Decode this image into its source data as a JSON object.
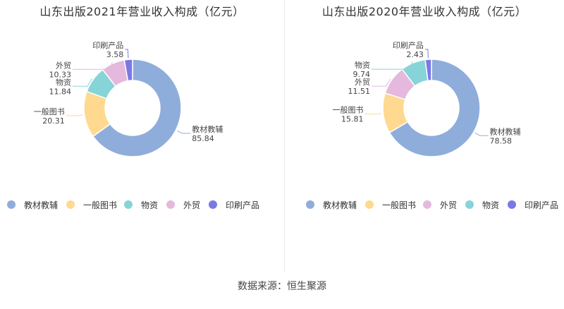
{
  "colors": {
    "教材教辅": "#8faddb",
    "一般图书": "#ffd98f",
    "物资": "#86d4d8",
    "外贸": "#e5b8dd",
    "印刷产品": "#7b78e6"
  },
  "chart_data": [
    {
      "type": "donut",
      "title": "山东出版2021年营业收入构成（亿元）",
      "slices": [
        {
          "name": "教材教辅",
          "value": 85.84,
          "label_value": "85.84"
        },
        {
          "name": "一般图书",
          "value": 20.31,
          "label_value": "20.31"
        },
        {
          "name": "物资",
          "value": 11.84,
          "label_value": "11.84"
        },
        {
          "name": "外贸",
          "value": 10.33,
          "label_value": "10.33"
        },
        {
          "name": "印刷产品",
          "value": 3.58,
          "label_value": "3.58"
        }
      ],
      "legend": [
        "教材教辅",
        "一般图书",
        "物资",
        "外贸",
        "印刷产品"
      ]
    },
    {
      "type": "donut",
      "title": "山东出版2020年营业收入构成（亿元）",
      "slices": [
        {
          "name": "教材教辅",
          "value": 78.58,
          "label_value": "78.58"
        },
        {
          "name": "一般图书",
          "value": 15.81,
          "label_value": "15.81"
        },
        {
          "name": "外贸",
          "value": 11.51,
          "label_value": "11.51"
        },
        {
          "name": "物资",
          "value": 9.74,
          "label_value": "9.74"
        },
        {
          "name": "印刷产品",
          "value": 2.43,
          "label_value": "2.43"
        }
      ],
      "legend": [
        "教材教辅",
        "一般图书",
        "外贸",
        "物资",
        "印刷产品"
      ]
    }
  ],
  "source": "数据来源：恒生聚源"
}
